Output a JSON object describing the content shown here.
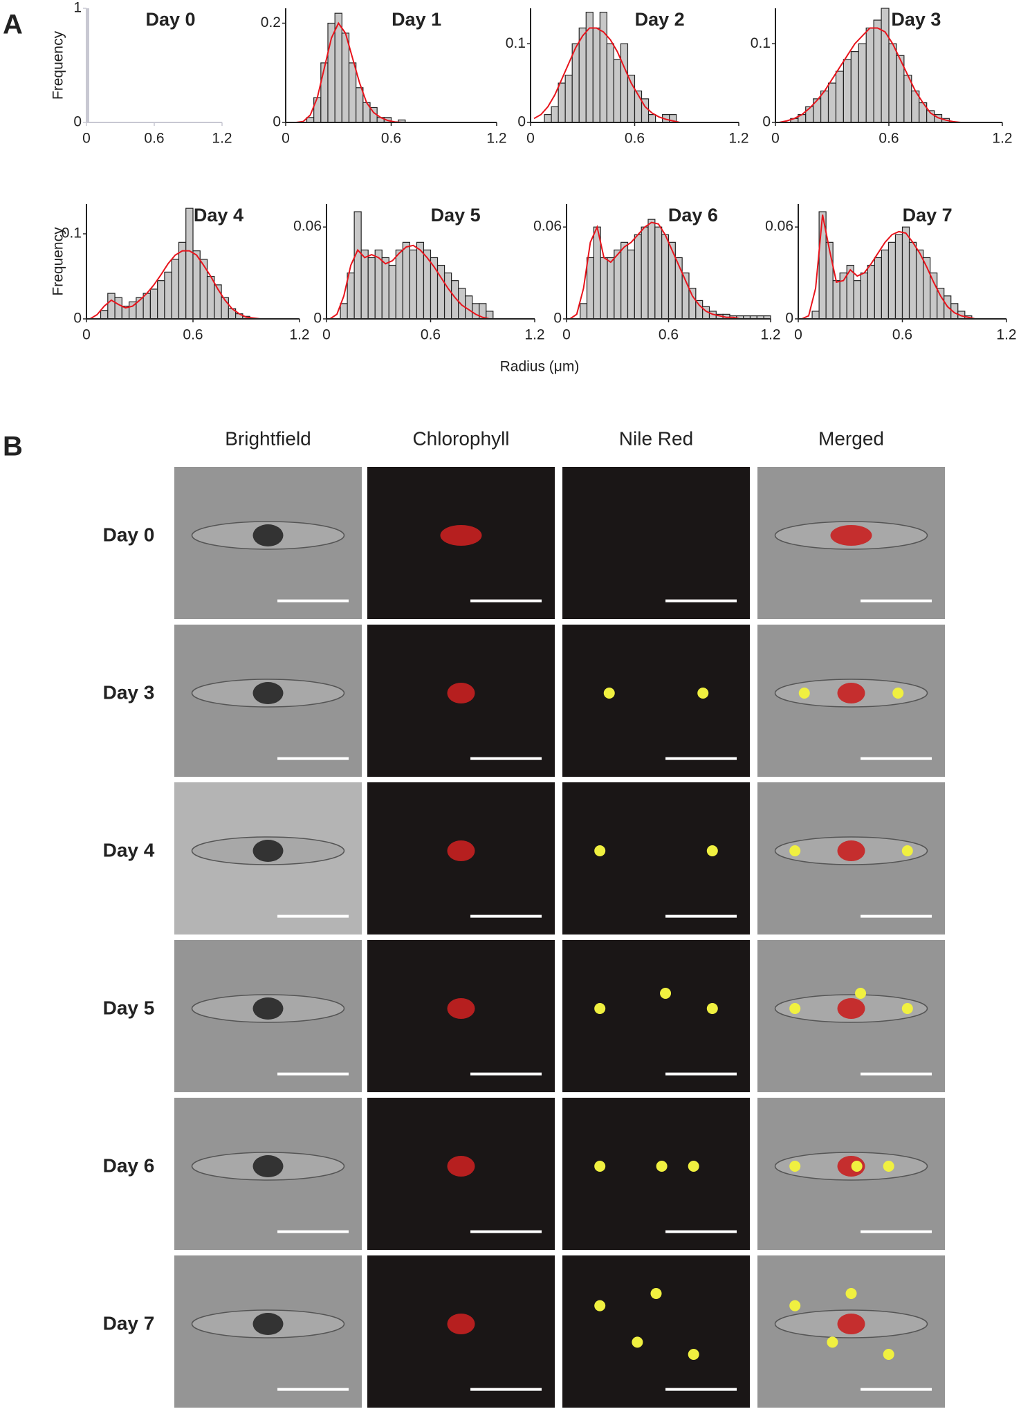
{
  "panel_a": {
    "label": "A",
    "x_axis_label": "Radius (μm)"
  },
  "chart_data": [
    {
      "type": "histogram",
      "title": "Day 0",
      "ylabel": "Frequency",
      "color": "#c8c8d2",
      "axis_color": "#c8c8d2",
      "bins": [
        0,
        0.01
      ],
      "counts": [
        1
      ],
      "xlim": [
        0,
        1.2
      ],
      "xticks": [
        0,
        0.6,
        1.2
      ],
      "ylim": [
        0,
        1
      ],
      "yticks": [
        0,
        1
      ]
    },
    {
      "type": "histogram",
      "title": "Day 1",
      "color": "#c8c8c8",
      "fit_color": "#e8141c",
      "axis_color": "#222222",
      "bins": [
        0,
        0.04,
        0.08,
        0.12,
        0.16,
        0.2,
        0.24,
        0.28,
        0.32,
        0.36,
        0.4,
        0.44,
        0.48,
        0.52,
        0.56,
        0.6,
        0.64,
        0.68,
        0.72,
        0.76,
        0.8,
        0.84,
        0.88,
        0.92,
        0.96,
        1.0,
        1.04,
        1.08,
        1.12,
        1.16,
        1.2
      ],
      "counts": [
        0,
        0,
        0,
        0.01,
        0.05,
        0.12,
        0.2,
        0.22,
        0.18,
        0.12,
        0.07,
        0.04,
        0.03,
        0.01,
        0.01,
        0,
        0.005,
        0,
        0,
        0,
        0,
        0,
        0,
        0,
        0,
        0,
        0,
        0,
        0,
        0
      ],
      "fit": [
        0,
        0,
        0.002,
        0.015,
        0.05,
        0.11,
        0.17,
        0.2,
        0.18,
        0.13,
        0.08,
        0.04,
        0.02,
        0.01,
        0.004,
        0.001,
        0,
        0,
        0,
        0,
        0,
        0,
        0,
        0,
        0,
        0,
        0,
        0,
        0,
        0
      ],
      "xlim": [
        0,
        1.2
      ],
      "xticks": [
        0,
        0.6,
        1.2
      ],
      "ylim": [
        0,
        0.23
      ],
      "yticks": [
        0,
        0.2
      ]
    },
    {
      "type": "histogram",
      "title": "Day 2",
      "color": "#c8c8c8",
      "fit_color": "#e8141c",
      "axis_color": "#222222",
      "bins": [
        0,
        0.04,
        0.08,
        0.12,
        0.16,
        0.2,
        0.24,
        0.28,
        0.32,
        0.36,
        0.4,
        0.44,
        0.48,
        0.52,
        0.56,
        0.6,
        0.64,
        0.68,
        0.72,
        0.76,
        0.8,
        0.84,
        0.88,
        0.92,
        0.96,
        1.0,
        1.04,
        1.08,
        1.12,
        1.16,
        1.2
      ],
      "counts": [
        0,
        0,
        0.01,
        0.02,
        0.05,
        0.06,
        0.1,
        0.12,
        0.14,
        0.12,
        0.14,
        0.1,
        0.08,
        0.1,
        0.06,
        0.04,
        0.03,
        0.01,
        0,
        0.01,
        0.01,
        0,
        0,
        0,
        0,
        0,
        0,
        0,
        0,
        0
      ],
      "fit": [
        0.005,
        0.01,
        0.02,
        0.035,
        0.055,
        0.075,
        0.095,
        0.11,
        0.12,
        0.12,
        0.115,
        0.105,
        0.09,
        0.07,
        0.05,
        0.035,
        0.02,
        0.012,
        0.007,
        0.004,
        0.002,
        0,
        0,
        0,
        0,
        0,
        0,
        0,
        0,
        0
      ],
      "xlim": [
        0,
        1.2
      ],
      "xticks": [
        0,
        0.6,
        1.2
      ],
      "ylim": [
        0,
        0.145
      ],
      "yticks": [
        0,
        0.1
      ]
    },
    {
      "type": "histogram",
      "title": "Day 3",
      "color": "#c8c8c8",
      "fit_color": "#e8141c",
      "axis_color": "#222222",
      "bins": [
        0,
        0.04,
        0.08,
        0.12,
        0.16,
        0.2,
        0.24,
        0.28,
        0.32,
        0.36,
        0.4,
        0.44,
        0.48,
        0.52,
        0.56,
        0.6,
        0.64,
        0.68,
        0.72,
        0.76,
        0.8,
        0.84,
        0.88,
        0.92,
        0.96,
        1.0,
        1.04,
        1.08,
        1.12,
        1.16,
        1.2
      ],
      "counts": [
        0,
        0,
        0.005,
        0.01,
        0.02,
        0.03,
        0.04,
        0.05,
        0.065,
        0.08,
        0.09,
        0.1,
        0.12,
        0.13,
        0.145,
        0.1,
        0.085,
        0.06,
        0.04,
        0.025,
        0.015,
        0.01,
        0.005,
        0,
        0,
        0,
        0,
        0,
        0,
        0
      ],
      "fit": [
        0,
        0.002,
        0.005,
        0.01,
        0.018,
        0.028,
        0.04,
        0.055,
        0.07,
        0.085,
        0.1,
        0.11,
        0.12,
        0.12,
        0.115,
        0.1,
        0.08,
        0.06,
        0.04,
        0.025,
        0.012,
        0.006,
        0.003,
        0.001,
        0,
        0,
        0,
        0,
        0,
        0
      ],
      "xlim": [
        0,
        1.2
      ],
      "xticks": [
        0,
        0.6,
        1.2
      ],
      "ylim": [
        0,
        0.145
      ],
      "yticks": [
        0,
        0.1
      ]
    },
    {
      "type": "histogram",
      "title": "Day 4",
      "ylabel": "Frequency",
      "color": "#c8c8c8",
      "fit_color": "#e8141c",
      "axis_color": "#222222",
      "bins": [
        0,
        0.04,
        0.08,
        0.12,
        0.16,
        0.2,
        0.24,
        0.28,
        0.32,
        0.36,
        0.4,
        0.44,
        0.48,
        0.52,
        0.56,
        0.6,
        0.64,
        0.68,
        0.72,
        0.76,
        0.8,
        0.84,
        0.88,
        0.92,
        0.96,
        1.0,
        1.04,
        1.08,
        1.12,
        1.16,
        1.2
      ],
      "counts": [
        0,
        0,
        0.01,
        0.03,
        0.025,
        0.015,
        0.02,
        0.025,
        0.03,
        0.035,
        0.045,
        0.055,
        0.07,
        0.09,
        0.13,
        0.08,
        0.07,
        0.05,
        0.04,
        0.025,
        0.012,
        0.006,
        0.003,
        0,
        0,
        0,
        0,
        0,
        0,
        0
      ],
      "fit": [
        0,
        0.005,
        0.015,
        0.022,
        0.017,
        0.013,
        0.015,
        0.022,
        0.03,
        0.04,
        0.052,
        0.065,
        0.075,
        0.08,
        0.08,
        0.075,
        0.063,
        0.05,
        0.035,
        0.022,
        0.012,
        0.006,
        0.002,
        0.001,
        0,
        0,
        0,
        0,
        0,
        0
      ],
      "xlim": [
        0,
        1.2
      ],
      "xticks": [
        0,
        0.6,
        1.2
      ],
      "ylim": [
        0,
        0.135
      ],
      "yticks": [
        0,
        0.1
      ]
    },
    {
      "type": "histogram",
      "title": "Day 5",
      "color": "#c8c8c8",
      "fit_color": "#e8141c",
      "axis_color": "#222222",
      "bins": [
        0,
        0.04,
        0.08,
        0.12,
        0.16,
        0.2,
        0.24,
        0.28,
        0.32,
        0.36,
        0.4,
        0.44,
        0.48,
        0.52,
        0.56,
        0.6,
        0.64,
        0.68,
        0.72,
        0.76,
        0.8,
        0.84,
        0.88,
        0.92,
        0.96,
        1.0,
        1.04,
        1.08,
        1.12,
        1.16,
        1.2
      ],
      "counts": [
        0,
        0,
        0.01,
        0.03,
        0.07,
        0.045,
        0.04,
        0.045,
        0.04,
        0.035,
        0.045,
        0.05,
        0.045,
        0.05,
        0.045,
        0.04,
        0.035,
        0.03,
        0.025,
        0.02,
        0.015,
        0.01,
        0.01,
        0.005,
        0,
        0,
        0,
        0,
        0,
        0
      ],
      "fit": [
        0,
        0.003,
        0.015,
        0.035,
        0.045,
        0.04,
        0.042,
        0.04,
        0.036,
        0.038,
        0.043,
        0.047,
        0.048,
        0.045,
        0.04,
        0.034,
        0.027,
        0.02,
        0.014,
        0.009,
        0.006,
        0.003,
        0.001,
        0,
        0,
        0,
        0,
        0,
        0,
        0
      ],
      "xlim": [
        0,
        1.2
      ],
      "xticks": [
        0,
        0.6,
        1.2
      ],
      "ylim": [
        0,
        0.075
      ],
      "yticks": [
        0,
        0.06
      ]
    },
    {
      "type": "histogram",
      "title": "Day 6",
      "color": "#c8c8c8",
      "fit_color": "#e8141c",
      "axis_color": "#222222",
      "bins": [
        0,
        0.04,
        0.08,
        0.12,
        0.16,
        0.2,
        0.24,
        0.28,
        0.32,
        0.36,
        0.4,
        0.44,
        0.48,
        0.52,
        0.56,
        0.6,
        0.64,
        0.68,
        0.72,
        0.76,
        0.8,
        0.84,
        0.88,
        0.92,
        0.96,
        1.0,
        1.04,
        1.08,
        1.12,
        1.16,
        1.2
      ],
      "counts": [
        0,
        0,
        0.01,
        0.04,
        0.06,
        0.04,
        0.04,
        0.045,
        0.05,
        0.045,
        0.055,
        0.06,
        0.065,
        0.06,
        0.055,
        0.05,
        0.04,
        0.03,
        0.02,
        0.012,
        0.008,
        0.005,
        0.003,
        0.003,
        0.002,
        0.002,
        0.002,
        0.002,
        0.002,
        0.002
      ],
      "fit": [
        0,
        0.003,
        0.02,
        0.05,
        0.06,
        0.04,
        0.037,
        0.042,
        0.047,
        0.05,
        0.055,
        0.06,
        0.063,
        0.062,
        0.055,
        0.045,
        0.035,
        0.025,
        0.015,
        0.009,
        0.005,
        0.003,
        0.002,
        0.001,
        0.001,
        0,
        0,
        0,
        0,
        0
      ],
      "xlim": [
        0,
        1.2
      ],
      "xticks": [
        0,
        0.6,
        1.2
      ],
      "ylim": [
        0,
        0.075
      ],
      "yticks": [
        0,
        0.06
      ]
    },
    {
      "type": "histogram",
      "title": "Day 7",
      "color": "#c8c8c8",
      "fit_color": "#e8141c",
      "axis_color": "#222222",
      "bins": [
        0,
        0.04,
        0.08,
        0.12,
        0.16,
        0.2,
        0.24,
        0.28,
        0.32,
        0.36,
        0.4,
        0.44,
        0.48,
        0.52,
        0.56,
        0.6,
        0.64,
        0.68,
        0.72,
        0.76,
        0.8,
        0.84,
        0.88,
        0.92,
        0.96,
        1.0,
        1.04,
        1.08,
        1.12,
        1.16,
        1.2
      ],
      "counts": [
        0,
        0,
        0.005,
        0.07,
        0.05,
        0.025,
        0.03,
        0.035,
        0.025,
        0.03,
        0.035,
        0.04,
        0.045,
        0.05,
        0.055,
        0.06,
        0.05,
        0.045,
        0.04,
        0.03,
        0.02,
        0.015,
        0.01,
        0.005,
        0.002,
        0,
        0,
        0,
        0,
        0
      ],
      "fit": [
        0,
        0.002,
        0.02,
        0.068,
        0.045,
        0.024,
        0.025,
        0.032,
        0.028,
        0.03,
        0.036,
        0.043,
        0.05,
        0.055,
        0.057,
        0.056,
        0.05,
        0.043,
        0.034,
        0.024,
        0.015,
        0.008,
        0.004,
        0.002,
        0.001,
        0,
        0,
        0,
        0,
        0
      ],
      "xlim": [
        0,
        1.2
      ],
      "xticks": [
        0,
        0.6,
        1.2
      ],
      "ylim": [
        0,
        0.075
      ],
      "yticks": [
        0,
        0.06
      ]
    }
  ],
  "panel_b": {
    "label": "B",
    "columns": [
      "Brightfield",
      "Chlorophyll",
      "Nile  Red",
      "Merged"
    ],
    "rows": [
      "Day 0",
      "Day 3",
      "Day 4",
      "Day 5",
      "Day 6",
      "Day 7"
    ]
  }
}
